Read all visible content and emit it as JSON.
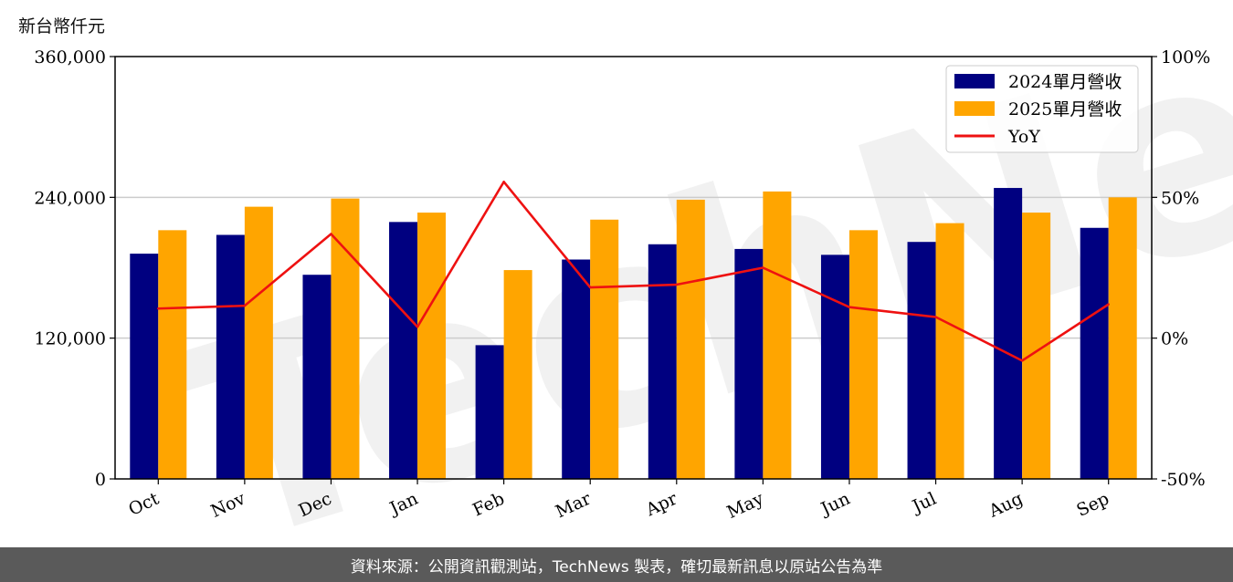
{
  "unit_label": "新台幣仟元",
  "footer_text": "資料來源：公開資訊觀測站，TechNews 製表，確切最新訊息以原站公告為準",
  "watermark_text": "TechNews",
  "colors": {
    "series_2024": "#000080",
    "series_2025": "#ffa500",
    "yoy": "#ee1111",
    "grid": "#cccccc",
    "watermark": "#d9d9d9",
    "footer_bg": "#5a5a5a"
  },
  "chart_data": {
    "type": "bar",
    "categories": [
      "Oct",
      "Nov",
      "Dec",
      "Jan",
      "Feb",
      "Mar",
      "Apr",
      "May",
      "Jun",
      "Jul",
      "Aug",
      "Sep"
    ],
    "series": [
      {
        "name": "2024單月營收",
        "type": "bar",
        "axis": "left",
        "values": [
          192000,
          208000,
          174000,
          219000,
          114000,
          187000,
          200000,
          196000,
          191000,
          202000,
          248000,
          214000
        ]
      },
      {
        "name": "2025單月營收",
        "type": "bar",
        "axis": "left",
        "values": [
          212000,
          232000,
          239000,
          227000,
          178000,
          221000,
          238000,
          245000,
          212000,
          218000,
          227000,
          240000
        ]
      },
      {
        "name": "YoY",
        "type": "line",
        "axis": "right",
        "values": [
          10.5,
          11.5,
          37,
          4,
          55.5,
          18,
          19,
          25,
          11,
          7.5,
          -8,
          12
        ]
      }
    ],
    "ylim_left": [
      0,
      360000
    ],
    "yticks_left": [
      0,
      120000,
      240000,
      360000
    ],
    "ytick_labels_left": [
      "0",
      "120,000",
      "240,000",
      "360,000"
    ],
    "ylim_right": [
      -50,
      100
    ],
    "yticks_right": [
      -50,
      0,
      50,
      100
    ],
    "ytick_labels_right": [
      "-50%",
      "0%",
      "50%",
      "100%"
    ],
    "grid": "horizontal",
    "legend": "top-right"
  }
}
